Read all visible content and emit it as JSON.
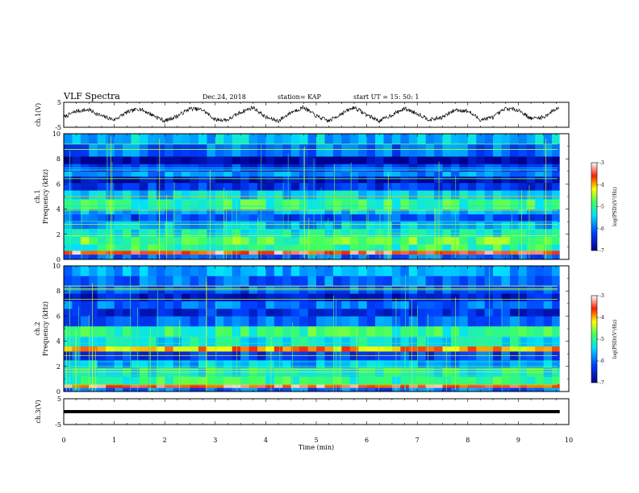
{
  "header": {
    "title": "VLF Spectra",
    "date": "Dec.24, 2018",
    "station": "station= KAP",
    "start": "start  UT  =   15: 50: 1"
  },
  "chart_data": [
    {
      "type": "line",
      "panel": "ch1",
      "ylabel": "ch.1(V)",
      "ylim": [
        -5,
        5
      ],
      "yticks": [
        "5",
        "-5"
      ],
      "xlim": [
        0,
        10
      ],
      "description_values": {
        "x": [
          0,
          0.25,
          0.5,
          0.75,
          1,
          1.25,
          1.5,
          1.75,
          2,
          2.25,
          2.5,
          2.75,
          3,
          3.25,
          3.5,
          3.75,
          4,
          4.25,
          4.5,
          4.75,
          5,
          5.25,
          5.5,
          5.75,
          6,
          6.25,
          6.5,
          6.75,
          7,
          7.25,
          7.5,
          7.75,
          8,
          8.25,
          8.5,
          8.75,
          9,
          9.25,
          9.5,
          9.75
        ],
        "y": [
          -1,
          1.5,
          2,
          -0.5,
          -2,
          1,
          2.5,
          0,
          -2.5,
          -0.5,
          2.5,
          2,
          -2,
          -2,
          1,
          3,
          -1,
          -2.5,
          1,
          3,
          -0.5,
          -2.5,
          0.5,
          3,
          0,
          -2.5,
          0,
          2.5,
          0.5,
          -2,
          -1,
          2,
          1.5,
          -2,
          -1,
          2.5,
          2,
          -1.5,
          -1,
          2.5
        ]
      }
    },
    {
      "type": "heatmap",
      "panel": "ch1-spectrogram",
      "ylabel": "ch.1\nFrequency (kHz)",
      "ylim": [
        0,
        10
      ],
      "yticks": [
        "0",
        "2",
        "4",
        "6",
        "8",
        "10"
      ],
      "xlim": [
        0,
        10
      ],
      "colorbar": {
        "label": "log(PSD)(V²/Hz)",
        "range": [
          -7,
          -3
        ],
        "ticks": [
          "-3",
          "-4",
          "-5",
          "-6",
          "-7"
        ]
      },
      "bands": [
        {
          "f": [
            0.0,
            0.4
          ],
          "level": -6.0
        },
        {
          "f": [
            0.4,
            0.7
          ],
          "level": -3.5
        },
        {
          "f": [
            0.7,
            1.2
          ],
          "level": -5.0
        },
        {
          "f": [
            1.2,
            1.8
          ],
          "level": -4.8
        },
        {
          "f": [
            1.8,
            2.4
          ],
          "level": -5.3
        },
        {
          "f": [
            2.4,
            3.0
          ],
          "level": -5.6
        },
        {
          "f": [
            3.0,
            3.6
          ],
          "level": -6.2
        },
        {
          "f": [
            3.6,
            4.0
          ],
          "level": -5.6
        },
        {
          "f": [
            4.0,
            4.8
          ],
          "level": -5.0
        },
        {
          "f": [
            4.8,
            5.5
          ],
          "level": -5.5
        },
        {
          "f": [
            5.5,
            6.1
          ],
          "level": -6.4
        },
        {
          "f": [
            6.1,
            6.6
          ],
          "level": -6.8
        },
        {
          "f": [
            6.6,
            7.0
          ],
          "level": -5.8
        },
        {
          "f": [
            7.0,
            7.6
          ],
          "level": -6.3
        },
        {
          "f": [
            7.6,
            8.2
          ],
          "level": -6.9
        },
        {
          "f": [
            8.2,
            9.2
          ],
          "level": -6.0
        },
        {
          "f": [
            9.2,
            10.0
          ],
          "level": -5.6
        }
      ]
    },
    {
      "type": "heatmap",
      "panel": "ch2-spectrogram",
      "ylabel": "ch.2\nFrequency (kHz)",
      "ylim": [
        0,
        10
      ],
      "yticks": [
        "0",
        "2",
        "4",
        "6",
        "8",
        "10"
      ],
      "xlim": [
        0,
        10
      ],
      "colorbar": {
        "label": "log(PSD)(V²/Hz)",
        "range": [
          -7,
          -3
        ],
        "ticks": [
          "-3",
          "-4",
          "-5",
          "-6",
          "-7"
        ]
      },
      "bands": [
        {
          "f": [
            0.0,
            0.3
          ],
          "level": -6.0
        },
        {
          "f": [
            0.3,
            0.6
          ],
          "level": -3.5
        },
        {
          "f": [
            0.6,
            1.2
          ],
          "level": -5.0
        },
        {
          "f": [
            1.2,
            1.9
          ],
          "level": -5.2
        },
        {
          "f": [
            1.9,
            2.5
          ],
          "level": -5.6
        },
        {
          "f": [
            2.5,
            3.2
          ],
          "level": -6.2
        },
        {
          "f": [
            3.2,
            3.6
          ],
          "level": -4.0
        },
        {
          "f": [
            3.6,
            4.4
          ],
          "level": -5.3
        },
        {
          "f": [
            4.4,
            5.2
          ],
          "level": -5.0
        },
        {
          "f": [
            5.2,
            6.0
          ],
          "level": -6.0
        },
        {
          "f": [
            6.0,
            6.6
          ],
          "level": -6.4
        },
        {
          "f": [
            6.6,
            7.2
          ],
          "level": -6.0
        },
        {
          "f": [
            7.2,
            7.8
          ],
          "level": -6.6
        },
        {
          "f": [
            7.8,
            8.4
          ],
          "level": -6.2
        },
        {
          "f": [
            8.4,
            9.2
          ],
          "level": -6.0
        },
        {
          "f": [
            9.2,
            10.0
          ],
          "level": -5.7
        }
      ]
    },
    {
      "type": "line",
      "panel": "ch3",
      "ylabel": "ch.3(V)",
      "ylim": [
        -5,
        5
      ],
      "yticks": [
        "5",
        "-5"
      ],
      "xlim": [
        0,
        10
      ],
      "xlabel": "Time  (min)",
      "xticks": [
        "0",
        "1",
        "2",
        "3",
        "4",
        "5",
        "6",
        "7",
        "8",
        "9",
        "10"
      ],
      "constant_value": 0
    }
  ]
}
